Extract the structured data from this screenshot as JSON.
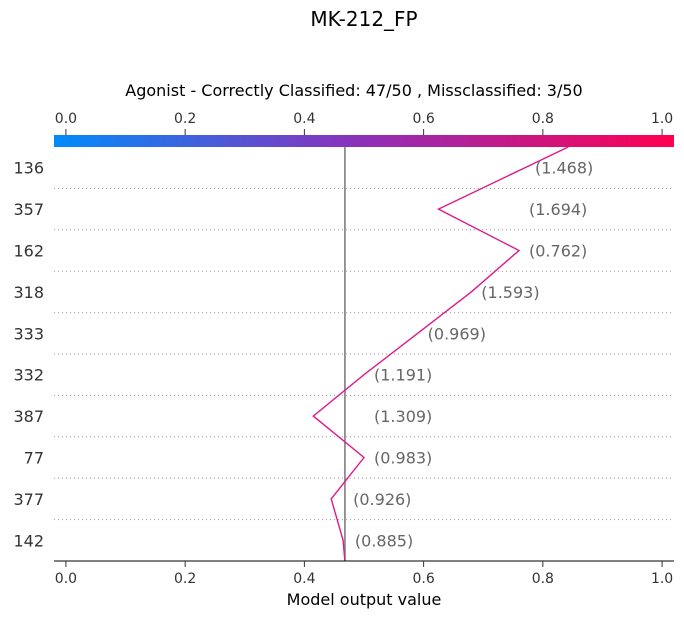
{
  "chart_data": {
    "type": "line",
    "title": "MK-212_FP",
    "subtitle": "Agonist - Correctly Classified: 47/50 , Missclassified: 3/50",
    "xlabel": "Model output value",
    "xlim": [
      -0.02,
      1.02
    ],
    "x_ticks": [
      "0.0",
      "0.2",
      "0.4",
      "0.6",
      "0.8",
      "1.0"
    ],
    "base_value": 0.468,
    "colorbar": {
      "from": "#008bfb",
      "mid": "#8f2fb8",
      "to": "#ff0051"
    },
    "line_color": "#dd1a8c",
    "base_line_color": "#7f7f7f",
    "grid": "dotted-horizontal",
    "start_value": 0.468,
    "features": [
      {
        "name": "142",
        "label": "(0.885)",
        "value": 0.465
      },
      {
        "name": "377",
        "label": "(0.926)",
        "value": 0.445
      },
      {
        "name": "77",
        "label": "(0.983)",
        "value": 0.5
      },
      {
        "name": "387",
        "label": "(1.309)",
        "value": 0.415
      },
      {
        "name": "332",
        "label": "(1.191)",
        "value": 0.5
      },
      {
        "name": "333",
        "label": "(0.969)",
        "value": 0.59
      },
      {
        "name": "318",
        "label": "(1.593)",
        "value": 0.68
      },
      {
        "name": "162",
        "label": "(0.762)",
        "value": 0.76
      },
      {
        "name": "357",
        "label": "(1.694)",
        "value": 0.625
      },
      {
        "name": "136",
        "label": "(1.468)",
        "value": 0.77
      }
    ]
  }
}
